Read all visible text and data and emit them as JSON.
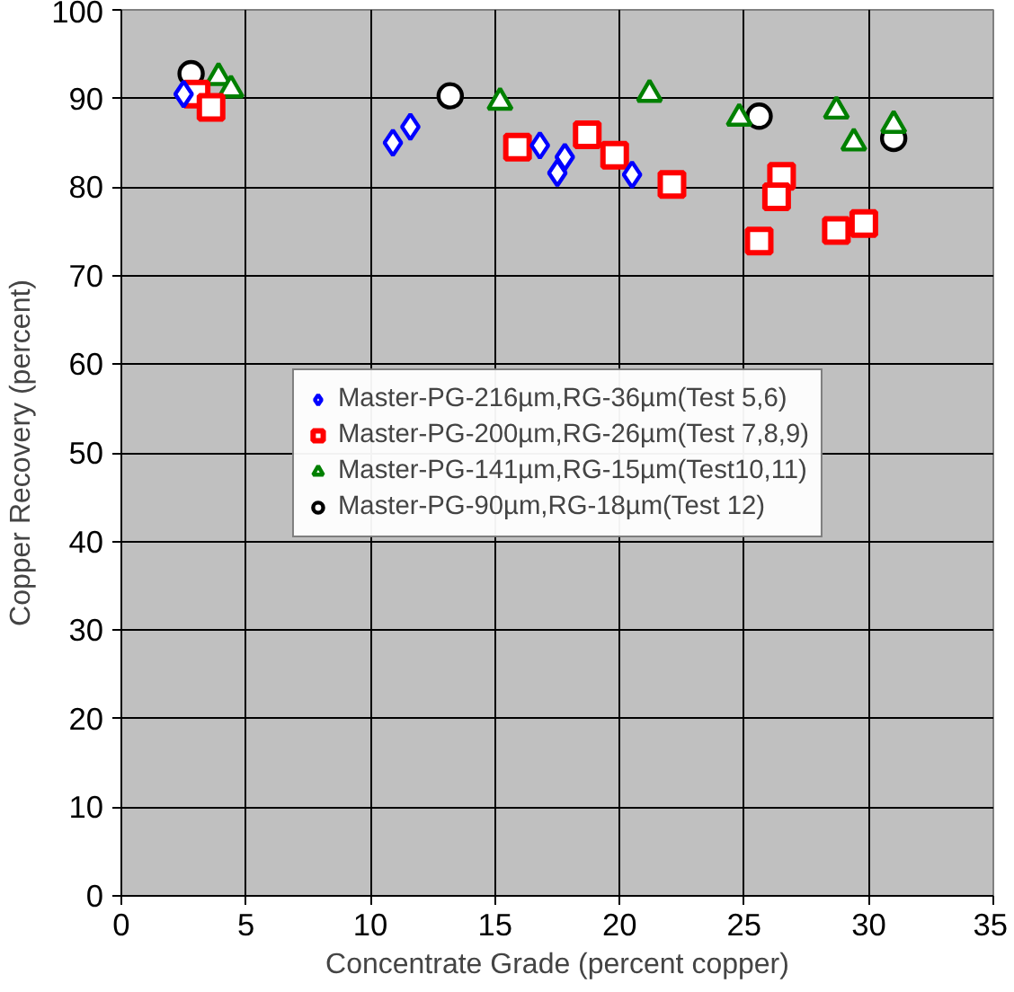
{
  "chart_data": {
    "type": "scatter",
    "xlabel": "Concentrate Grade (percent copper)",
    "ylabel": "Copper Recovery (percent)",
    "xlim": [
      0,
      35
    ],
    "xticks": [
      0,
      5,
      10,
      15,
      20,
      25,
      30,
      35
    ],
    "ylim": [
      0,
      100
    ],
    "yticks": [
      0,
      10,
      20,
      30,
      40,
      50,
      60,
      70,
      80,
      90,
      100
    ],
    "grid": true,
    "legend": "center",
    "series": [
      {
        "name": "Master-PG-216µm,RG-36µm(Test 5,6)",
        "color": "#0000ff",
        "marker": "diamond",
        "x": [
          2.5,
          10.9,
          11.6,
          16.8,
          17.8,
          17.5,
          20.5
        ],
        "values": [
          90.5,
          85,
          86.8,
          84.7,
          83.4,
          81.6,
          81.4
        ]
      },
      {
        "name": "Master-PG-200µm,RG-26µm(Test 7,8,9)",
        "color": "#ff0000",
        "marker": "square",
        "x": [
          3.0,
          3.6,
          15.9,
          18.7,
          19.8,
          22.1,
          26.5,
          26.3,
          25.6,
          28.7,
          29.8
        ],
        "values": [
          90.5,
          89,
          84.5,
          85.9,
          83.6,
          80.3,
          81.2,
          78.9,
          73.9,
          75.1,
          75.9
        ]
      },
      {
        "name": "Master-PG-141µm,RG-15µm(Test10,11)",
        "color": "#008000",
        "marker": "triangle",
        "x": [
          3.9,
          4.4,
          15.2,
          21.2,
          24.8,
          28.7,
          29.4,
          31.0
        ],
        "values": [
          92.4,
          91,
          89.6,
          90.5,
          87.8,
          88.6,
          85,
          87
        ]
      },
      {
        "name": "Master-PG-90µm,RG-18µm(Test 12)",
        "color": "#000000",
        "marker": "circle",
        "x": [
          2.8,
          13.2,
          25.6,
          31.0
        ],
        "values": [
          92.8,
          90.3,
          88,
          85.5
        ]
      }
    ]
  }
}
